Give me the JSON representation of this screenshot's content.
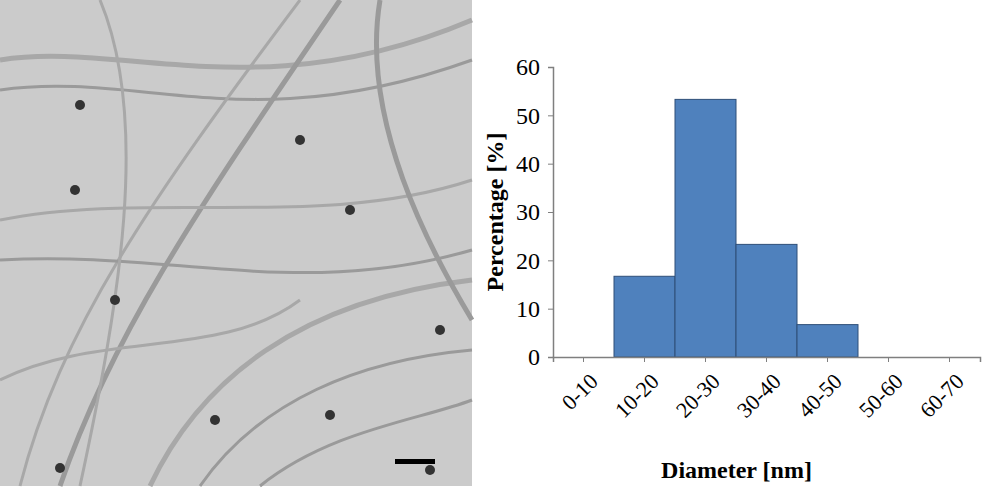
{
  "chart_data": {
    "type": "bar",
    "categories": [
      "0-10",
      "10-20",
      "20-30",
      "30-40",
      "40-50",
      "50-60",
      "60-70"
    ],
    "values": [
      0,
      16.7,
      53.3,
      23.3,
      6.7,
      0,
      0
    ],
    "color": "#4f81bd",
    "x_label": "Diameter [nm]",
    "y_label": "Percentage [%]",
    "ylim": [
      0,
      60
    ],
    "yticks": [
      0,
      10,
      20,
      30,
      40,
      50,
      60
    ],
    "grid": false
  }
}
